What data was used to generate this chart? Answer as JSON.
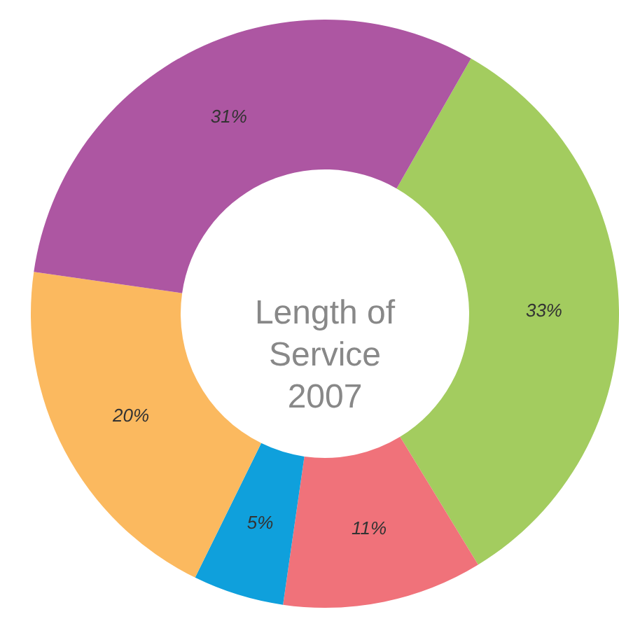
{
  "chart_data": {
    "type": "donut",
    "title": "Length of\nService\n2007",
    "categories": [
      null,
      null,
      null,
      null,
      null
    ],
    "values": [
      33,
      11,
      5,
      20,
      31
    ],
    "value_labels": [
      "33%",
      "11%",
      "5%",
      "20%",
      "31%"
    ],
    "colors": [
      "#a3cc5f",
      "#f0727a",
      "#0fa0dc",
      "#fbb95f",
      "#ad56a2"
    ]
  }
}
